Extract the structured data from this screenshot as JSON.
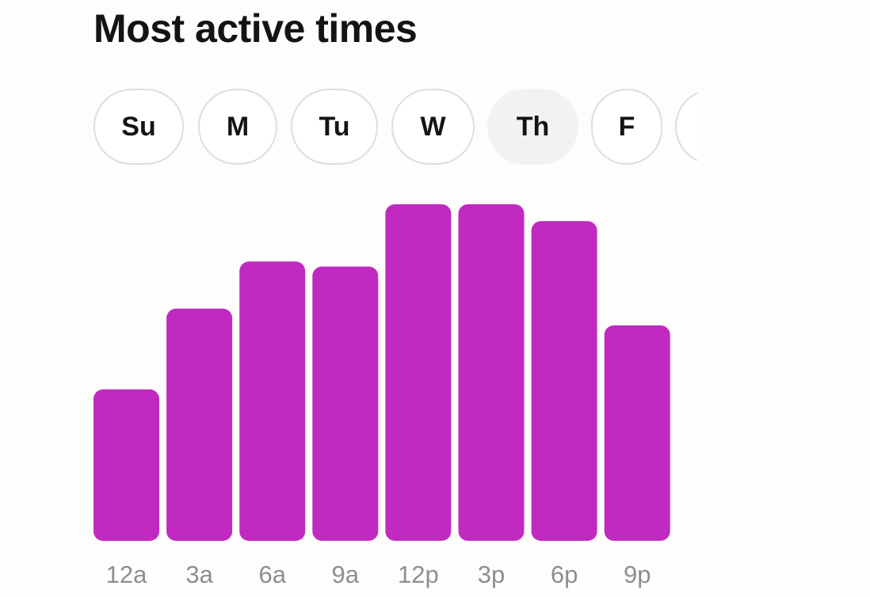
{
  "header": {
    "title": "Most active times"
  },
  "days": [
    {
      "label": "Su",
      "selected": false
    },
    {
      "label": "M",
      "selected": false
    },
    {
      "label": "Tu",
      "selected": false
    },
    {
      "label": "W",
      "selected": false
    },
    {
      "label": "Th",
      "selected": true
    },
    {
      "label": "F",
      "selected": false
    },
    {
      "label": "",
      "selected": false
    }
  ],
  "chart_data": {
    "type": "bar",
    "categories": [
      "12a",
      "3a",
      "6a",
      "9a",
      "12p",
      "3p",
      "6p",
      "9p"
    ],
    "values": [
      45,
      69,
      83,
      81.5,
      100,
      100,
      95,
      64
    ],
    "ylim": [
      0,
      100
    ],
    "bar_color": "#c12ac1",
    "label_color": "#8e8e8e",
    "grid": false,
    "legend": "none"
  }
}
